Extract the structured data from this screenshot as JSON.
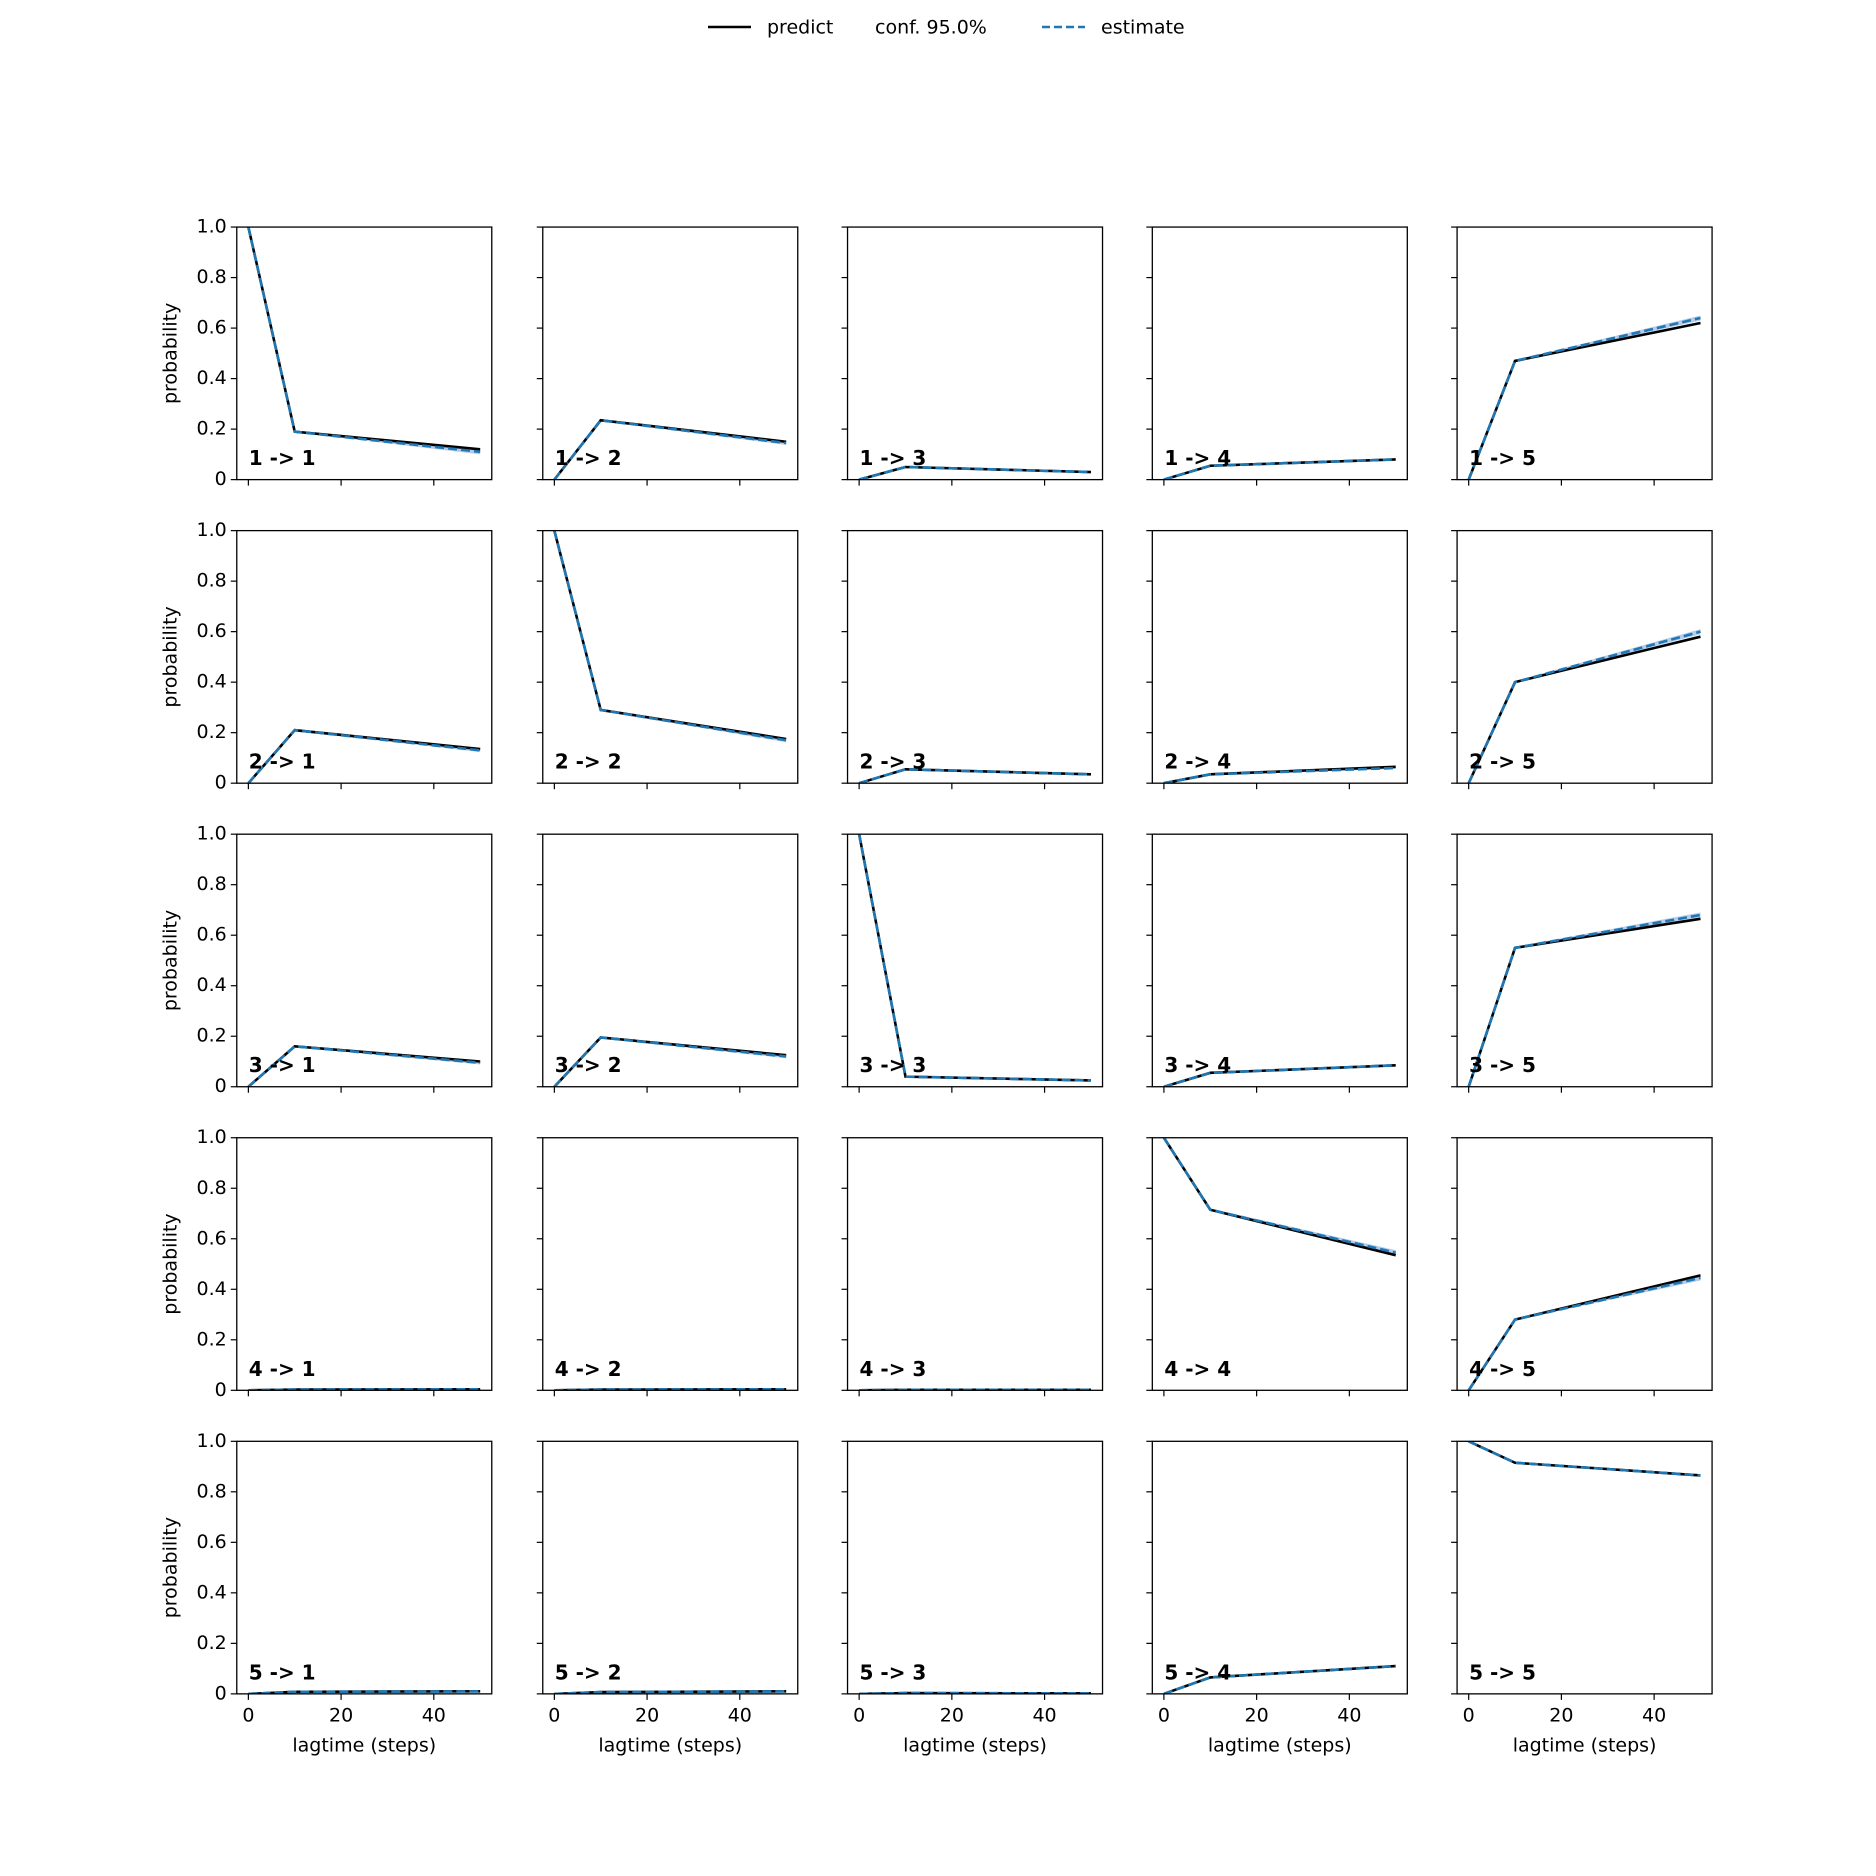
{
  "chart_data": {
    "type": "line",
    "xlabel": "lagtime (steps)",
    "ylabel": "probability",
    "x": [
      0,
      10,
      50
    ],
    "xlim": [
      -2.5,
      52.5
    ],
    "xticks": [
      0,
      20,
      40
    ],
    "ylim": [
      0,
      1
    ],
    "yticks": [
      0.0,
      {
        "value": 0.2,
        "label": "0.2"
      },
      {
        "value": 0.4,
        "label": "0.4"
      },
      {
        "value": 0.6,
        "label": "0.6"
      },
      {
        "value": 0.8,
        "label": "0.8"
      },
      {
        "value": 1.0,
        "label": "1.0"
      }
    ],
    "series": [
      {
        "name": "predict",
        "color": "#000000"
      },
      {
        "name": "conf. 95.0%",
        "color": "#aec7e8"
      },
      {
        "name": "estimate",
        "color": "#1f77b4"
      }
    ],
    "panels": [
      {
        "label": "1 -> 1",
        "predict": [
          1,
          0.19,
          0.12
        ],
        "estimate": [
          1,
          0.19,
          0.11
        ],
        "lower": [
          1,
          0.187,
          0.1
        ],
        "upper": [
          1,
          0.193,
          0.12
        ]
      },
      {
        "label": "1 -> 2",
        "predict": [
          0,
          0.235,
          0.15
        ],
        "estimate": [
          0,
          0.235,
          0.145
        ],
        "lower": [
          0,
          0.232,
          0.137
        ],
        "upper": [
          0,
          0.238,
          0.153
        ]
      },
      {
        "label": "1 -> 3",
        "predict": [
          0,
          0.05,
          0.03
        ],
        "estimate": [
          0,
          0.05,
          0.03
        ],
        "lower": [
          0,
          0.048,
          0.026
        ],
        "upper": [
          0,
          0.052,
          0.034
        ]
      },
      {
        "label": "1 -> 4",
        "predict": [
          0,
          0.055,
          0.08
        ],
        "estimate": [
          0,
          0.055,
          0.08
        ],
        "lower": [
          0,
          0.053,
          0.076
        ],
        "upper": [
          0,
          0.057,
          0.084
        ]
      },
      {
        "label": "1 -> 5",
        "predict": [
          0,
          0.47,
          0.62
        ],
        "estimate": [
          0,
          0.47,
          0.64
        ],
        "lower": [
          0,
          0.466,
          0.63
        ],
        "upper": [
          0,
          0.474,
          0.65
        ]
      },
      {
        "label": "2 -> 1",
        "predict": [
          0,
          0.21,
          0.135
        ],
        "estimate": [
          0,
          0.21,
          0.13
        ],
        "lower": [
          0,
          0.207,
          0.123
        ],
        "upper": [
          0,
          0.213,
          0.137
        ]
      },
      {
        "label": "2 -> 2",
        "predict": [
          1,
          0.29,
          0.175
        ],
        "estimate": [
          1,
          0.29,
          0.17
        ],
        "lower": [
          1,
          0.287,
          0.162
        ],
        "upper": [
          1,
          0.293,
          0.178
        ]
      },
      {
        "label": "2 -> 3",
        "predict": [
          0,
          0.055,
          0.035
        ],
        "estimate": [
          0,
          0.055,
          0.035
        ],
        "lower": [
          0,
          0.053,
          0.031
        ],
        "upper": [
          0,
          0.057,
          0.039
        ]
      },
      {
        "label": "2 -> 4",
        "predict": [
          0,
          0.035,
          0.065
        ],
        "estimate": [
          0,
          0.035,
          0.06
        ],
        "lower": [
          0,
          0.033,
          0.056
        ],
        "upper": [
          0,
          0.037,
          0.064
        ]
      },
      {
        "label": "2 -> 5",
        "predict": [
          0,
          0.4,
          0.58
        ],
        "estimate": [
          0,
          0.4,
          0.6
        ],
        "lower": [
          0,
          0.396,
          0.59
        ],
        "upper": [
          0,
          0.404,
          0.61
        ]
      },
      {
        "label": "3 -> 1",
        "predict": [
          0,
          0.16,
          0.1
        ],
        "estimate": [
          0,
          0.16,
          0.095
        ],
        "lower": [
          0,
          0.157,
          0.088
        ],
        "upper": [
          0,
          0.163,
          0.102
        ]
      },
      {
        "label": "3 -> 2",
        "predict": [
          0,
          0.195,
          0.125
        ],
        "estimate": [
          0,
          0.195,
          0.12
        ],
        "lower": [
          0,
          0.192,
          0.113
        ],
        "upper": [
          0,
          0.198,
          0.127
        ]
      },
      {
        "label": "3 -> 3",
        "predict": [
          1,
          0.04,
          0.025
        ],
        "estimate": [
          1,
          0.04,
          0.025
        ],
        "lower": [
          1,
          0.038,
          0.021
        ],
        "upper": [
          1,
          0.042,
          0.029
        ]
      },
      {
        "label": "3 -> 4",
        "predict": [
          0,
          0.055,
          0.085
        ],
        "estimate": [
          0,
          0.055,
          0.085
        ],
        "lower": [
          0,
          0.053,
          0.081
        ],
        "upper": [
          0,
          0.057,
          0.089
        ]
      },
      {
        "label": "3 -> 5",
        "predict": [
          0,
          0.55,
          0.665
        ],
        "estimate": [
          0,
          0.55,
          0.68
        ],
        "lower": [
          0,
          0.546,
          0.67
        ],
        "upper": [
          0,
          0.554,
          0.69
        ]
      },
      {
        "label": "4 -> 1",
        "predict": [
          0,
          0.003,
          0.004
        ],
        "estimate": [
          0,
          0.003,
          0.004
        ],
        "lower": [
          0,
          0.002,
          0.003
        ],
        "upper": [
          0,
          0.004,
          0.005
        ]
      },
      {
        "label": "4 -> 2",
        "predict": [
          0,
          0.003,
          0.004
        ],
        "estimate": [
          0,
          0.003,
          0.004
        ],
        "lower": [
          0,
          0.002,
          0.003
        ],
        "upper": [
          0,
          0.004,
          0.005
        ]
      },
      {
        "label": "4 -> 3",
        "predict": [
          0,
          0.002,
          0.002
        ],
        "estimate": [
          0,
          0.002,
          0.002
        ],
        "lower": [
          0,
          0.001,
          0.001
        ],
        "upper": [
          0,
          0.003,
          0.003
        ]
      },
      {
        "label": "4 -> 4",
        "predict": [
          1,
          0.715,
          0.535
        ],
        "estimate": [
          1,
          0.715,
          0.545
        ],
        "lower": [
          1,
          0.711,
          0.535
        ],
        "upper": [
          1,
          0.719,
          0.555
        ]
      },
      {
        "label": "4 -> 5",
        "predict": [
          0,
          0.28,
          0.455
        ],
        "estimate": [
          0,
          0.28,
          0.445
        ],
        "lower": [
          0,
          0.277,
          0.435
        ],
        "upper": [
          0,
          0.283,
          0.455
        ]
      },
      {
        "label": "5 -> 1",
        "predict": [
          0,
          0.008,
          0.01
        ],
        "estimate": [
          0,
          0.008,
          0.01
        ],
        "lower": [
          0,
          0.007,
          0.008
        ],
        "upper": [
          0,
          0.009,
          0.012
        ]
      },
      {
        "label": "5 -> 2",
        "predict": [
          0,
          0.007,
          0.01
        ],
        "estimate": [
          0,
          0.007,
          0.01
        ],
        "lower": [
          0,
          0.006,
          0.008
        ],
        "upper": [
          0,
          0.008,
          0.012
        ]
      },
      {
        "label": "5 -> 3",
        "predict": [
          0,
          0.003,
          0.002
        ],
        "estimate": [
          0,
          0.003,
          0.002
        ],
        "lower": [
          0,
          0.002,
          0.001
        ],
        "upper": [
          0,
          0.004,
          0.003
        ]
      },
      {
        "label": "5 -> 4",
        "predict": [
          0,
          0.065,
          0.11
        ],
        "estimate": [
          0,
          0.065,
          0.11
        ],
        "lower": [
          0,
          0.063,
          0.106
        ],
        "upper": [
          0,
          0.067,
          0.114
        ]
      },
      {
        "label": "5 -> 5",
        "predict": [
          1,
          0.915,
          0.865
        ],
        "estimate": [
          1,
          0.915,
          0.865
        ],
        "lower": [
          1,
          0.913,
          0.86
        ],
        "upper": [
          1,
          0.917,
          0.87
        ]
      }
    ]
  }
}
